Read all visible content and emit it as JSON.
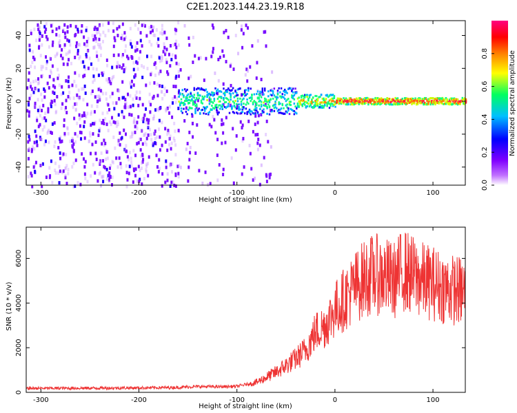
{
  "title": "C2E1.2023.144.23.19.R18",
  "colors": {
    "snr_line": "#ee3333",
    "axes": "#000000",
    "background": "#ffffff"
  },
  "chart_data": [
    {
      "type": "heatmap",
      "xlabel": "Height of straight line (km)",
      "ylabel": "Frequency (Hz)",
      "xlim": [
        -315,
        133
      ],
      "ylim": [
        -51,
        49
      ],
      "x_ticks": [
        -300,
        -200,
        -100,
        0,
        100
      ],
      "y_ticks": [
        -40,
        -20,
        0,
        20,
        40
      ],
      "colorbar": {
        "label": "Normalized spectral amplitude",
        "range": [
          0,
          1
        ],
        "ticks": [
          0.0,
          0.2,
          0.4,
          0.6,
          0.8
        ],
        "colormap": [
          "#ffffff",
          "#8000ff",
          "#0000ff",
          "#00c0ff",
          "#00ff60",
          "#ffff00",
          "#ff8000",
          "#ff0000",
          "#ff0080"
        ]
      },
      "features": {
        "noise_floor_region_km": [
          -315,
          -160
        ],
        "noise_floor_amplitude": 0.05,
        "signal_onset_km": -160,
        "signal_center_frequency_hz": 0,
        "signal_peak_amplitude": 1.0,
        "noise_fades_out_km": -65
      }
    },
    {
      "type": "line",
      "xlabel": "Height of straight line (km)",
      "ylabel": "SNR (10 * v/v)",
      "xlim": [
        -315,
        133
      ],
      "ylim": [
        0,
        7400
      ],
      "x_ticks": [
        -300,
        -200,
        -100,
        0,
        100
      ],
      "y_ticks": [
        0,
        2000,
        4000,
        6000
      ],
      "series": [
        {
          "x": [
            -315,
            -250,
            -200,
            -160,
            -140,
            -120,
            -100,
            -80,
            -60,
            -50,
            -40,
            -30,
            -20,
            -10,
            0,
            10,
            20,
            30,
            40,
            50,
            60,
            70,
            80,
            90,
            100,
            110,
            120,
            133
          ],
          "values": [
            180,
            190,
            200,
            220,
            260,
            250,
            270,
            450,
            900,
            1200,
            1500,
            1900,
            2700,
            3000,
            3700,
            4200,
            4700,
            5100,
            5300,
            5200,
            5000,
            5500,
            5200,
            5000,
            4900,
            4700,
            4600,
            4500
          ]
        }
      ]
    }
  ]
}
